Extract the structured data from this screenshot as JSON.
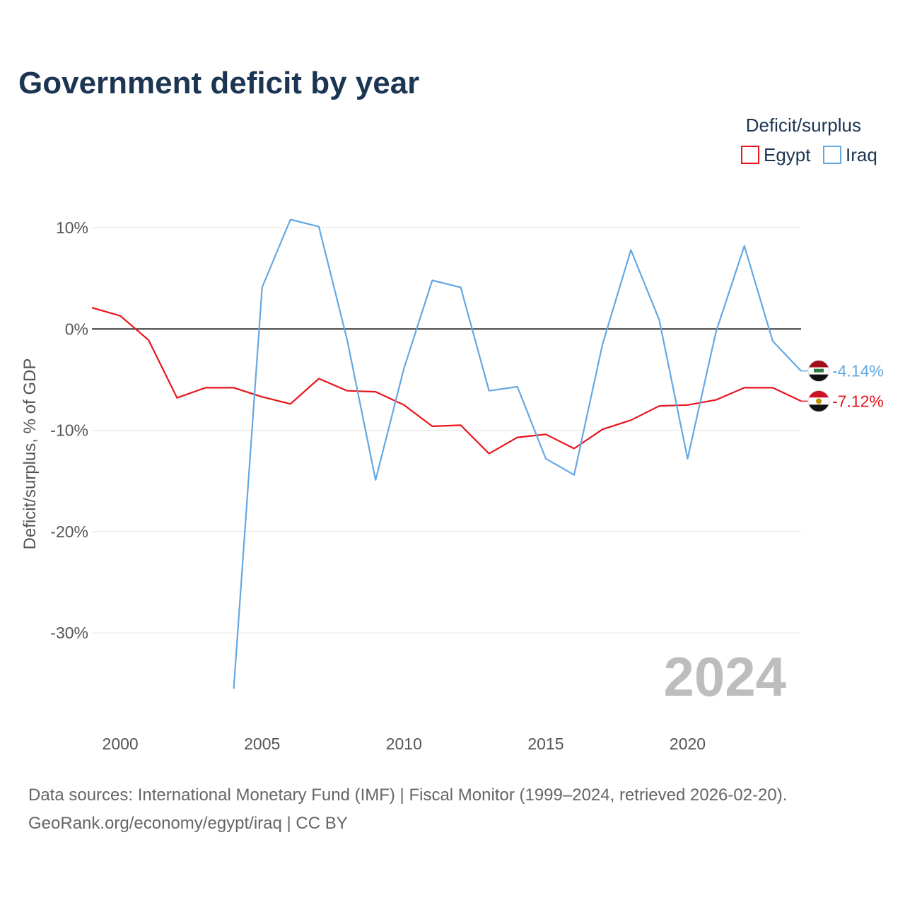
{
  "chart_data": {
    "type": "line",
    "title": "Government deficit by year",
    "legend_title": "Deficit/surplus",
    "legend_position": "top-right",
    "ylabel": "Deficit/surplus, % of GDP",
    "xlabel": "",
    "xlim": [
      1999,
      2024
    ],
    "ylim": [
      -38,
      13
    ],
    "x_ticks": [
      2000,
      2005,
      2010,
      2015,
      2020
    ],
    "x_tick_labels": [
      "2000",
      "2005",
      "2010",
      "2015",
      "2020"
    ],
    "y_ticks": [
      10,
      0,
      -10,
      -20,
      -30
    ],
    "y_tick_labels": [
      "10%",
      "0%",
      "-10%",
      "-20%",
      "-30%"
    ],
    "zero_line": true,
    "grid": true,
    "watermark": "2024",
    "series": [
      {
        "name": "Egypt",
        "color": "#e8141b",
        "end_label": "-7.12%",
        "flag_icon": "egypt-flag-icon",
        "x": [
          1999,
          2000,
          2001,
          2002,
          2003,
          2004,
          2005,
          2006,
          2007,
          2008,
          2009,
          2010,
          2011,
          2012,
          2013,
          2014,
          2015,
          2016,
          2017,
          2018,
          2019,
          2020,
          2021,
          2022,
          2023,
          2024
        ],
        "values": [
          2.1,
          1.3,
          -1.1,
          -6.8,
          -5.8,
          -5.8,
          -6.7,
          -7.4,
          -4.9,
          -6.1,
          -6.2,
          -7.5,
          -9.6,
          -9.5,
          -12.3,
          -10.7,
          -10.4,
          -11.8,
          -9.9,
          -9.0,
          -7.6,
          -7.5,
          -7.0,
          -5.8,
          -5.8,
          -7.12
        ]
      },
      {
        "name": "Iraq",
        "color": "#64a8e3",
        "end_label": "-4.14%",
        "flag_icon": "iraq-flag-icon",
        "x": [
          2004,
          2005,
          2006,
          2007,
          2008,
          2009,
          2010,
          2011,
          2012,
          2013,
          2014,
          2015,
          2016,
          2017,
          2018,
          2019,
          2020,
          2021,
          2022,
          2023,
          2024
        ],
        "values": [
          -35.5,
          4.1,
          10.8,
          10.1,
          -1.1,
          -14.9,
          -3.9,
          4.8,
          4.1,
          -6.1,
          -5.7,
          -12.8,
          -14.4,
          -1.5,
          7.8,
          0.9,
          -12.8,
          -0.3,
          8.2,
          -1.2,
          -4.14
        ]
      }
    ]
  },
  "source": {
    "line1": "Data sources: International Monetary Fund (IMF) | Fiscal Monitor (1999–2024, retrieved 2026-02-20).",
    "line2": "GeoRank.org/economy/egypt/iraq | CC BY"
  }
}
